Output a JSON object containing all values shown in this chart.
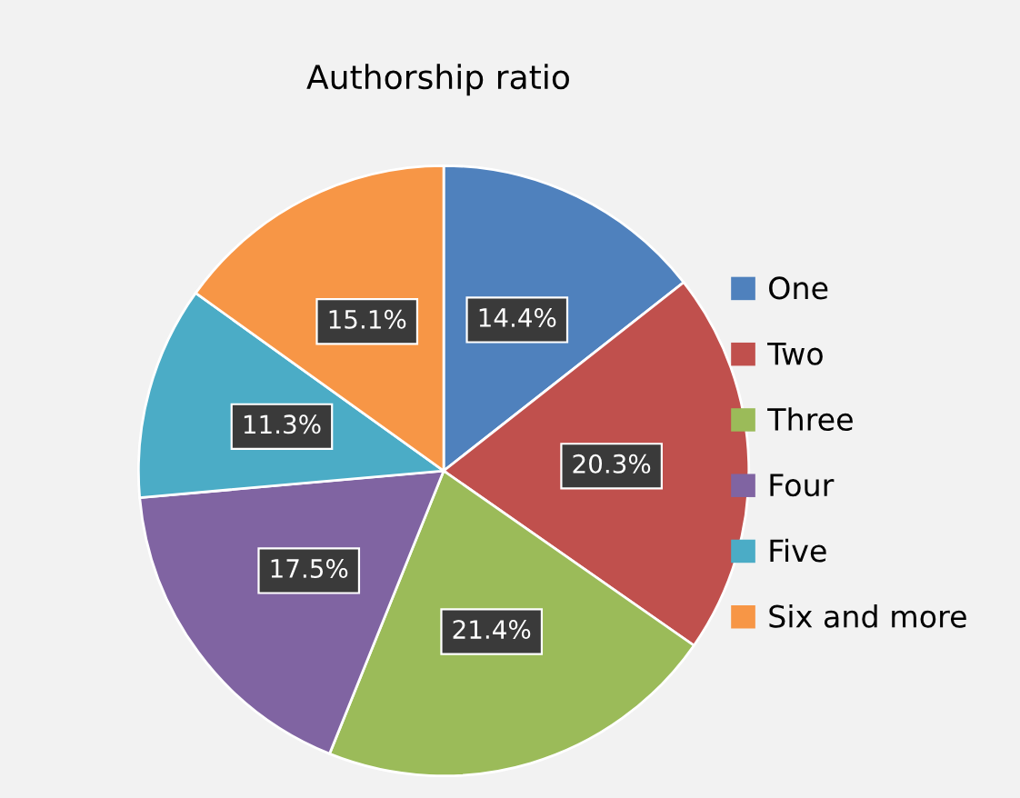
{
  "chart_data": {
    "type": "pie",
    "title": "Authorship ratio",
    "categories": [
      "One",
      "Two",
      "Three",
      "Four",
      "Five",
      "Six and more"
    ],
    "values": [
      14.4,
      20.3,
      21.4,
      17.5,
      11.3,
      15.1
    ],
    "value_labels": [
      "14.4%",
      "20.3%",
      "21.4%",
      "17.5%",
      "11.3%",
      "15.1%"
    ],
    "colors": [
      "#4f81bd",
      "#c0504d",
      "#9bbb59",
      "#8064a2",
      "#4bacc6",
      "#f79646"
    ],
    "legend": "right"
  }
}
